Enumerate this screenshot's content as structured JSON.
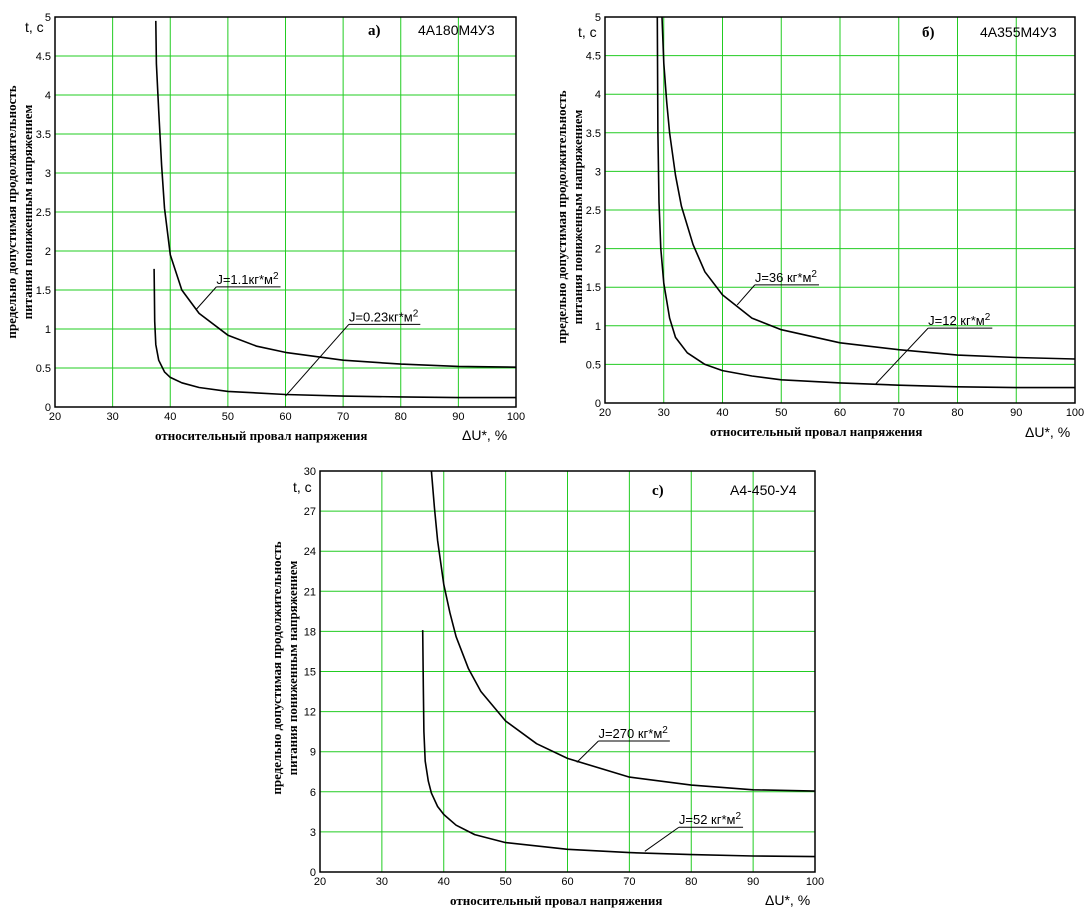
{
  "chart_data": [
    {
      "type": "line",
      "panel_letter": "а)",
      "model": "4A180M4У3",
      "ylabel_line1": "предельно допустимая продолжительность",
      "ylabel_line2": "питания пониженным напряжением",
      "xlabel": "относительный провал напряжения",
      "x_unit": "ΔU*, %",
      "y_unit": "t, c",
      "xlim": [
        20,
        100
      ],
      "ylim": [
        0,
        5
      ],
      "x_ticks": [
        "20",
        "30",
        "40",
        "50",
        "60",
        "70",
        "80",
        "90",
        "100"
      ],
      "y_ticks": [
        "0",
        "0.5",
        "1",
        "1.5",
        "2",
        "2.5",
        "3",
        "3.5",
        "4",
        "4.5",
        "5"
      ],
      "y_tick_values": [
        0,
        0.5,
        1,
        1.5,
        2,
        2.5,
        3,
        3.5,
        4,
        4.5,
        5
      ],
      "grid": true,
      "series": [
        {
          "name": "J=1.1",
          "x": [
            37.5,
            37.6,
            38,
            38.5,
            39,
            40,
            42,
            45,
            50,
            55,
            60,
            70,
            80,
            90,
            100
          ],
          "y": [
            4.95,
            4.4,
            3.8,
            3.1,
            2.55,
            1.95,
            1.5,
            1.2,
            0.92,
            0.78,
            0.7,
            0.6,
            0.55,
            0.52,
            0.51
          ]
        },
        {
          "name": "J=0.23",
          "x": [
            37.2,
            37.25,
            37.3,
            37.5,
            38,
            39,
            40,
            42,
            45,
            50,
            60,
            70,
            80,
            90,
            100
          ],
          "y": [
            1.77,
            1.45,
            1.1,
            0.8,
            0.6,
            0.45,
            0.38,
            0.31,
            0.25,
            0.2,
            0.16,
            0.14,
            0.13,
            0.12,
            0.12
          ]
        }
      ],
      "annotations": [
        {
          "series": "J=1.1",
          "prefix": "J=1.1",
          "unit": "кг*м",
          "power": "2",
          "at": [
            44.5,
            1.25
          ],
          "text_at": [
            48,
            1.54
          ]
        },
        {
          "series": "J=0.23",
          "prefix": "J=0.23",
          "unit": "кг*м",
          "power": "2",
          "at": [
            60,
            0.14
          ],
          "text_at": [
            71,
            1.06
          ]
        }
      ]
    },
    {
      "type": "line",
      "panel_letter": "б)",
      "model": "4A355M4У3",
      "ylabel_line1": "предельно допустимая продолжительность",
      "ylabel_line2": "питания пониженным напряжением",
      "xlabel": "относительный провал напряжения",
      "x_unit": "ΔU*, %",
      "y_unit": "t, c",
      "xlim": [
        20,
        100
      ],
      "ylim": [
        0,
        5
      ],
      "x_ticks": [
        "20",
        "30",
        "40",
        "50",
        "60",
        "70",
        "80",
        "90",
        "100"
      ],
      "y_ticks": [
        "0",
        "0.5",
        "1",
        "1.5",
        "2",
        "2.5",
        "3",
        "3.5",
        "4",
        "4.5",
        "5"
      ],
      "y_tick_values": [
        0,
        0.5,
        1,
        1.5,
        2,
        2.5,
        3,
        3.5,
        4,
        4.5,
        5
      ],
      "grid": true,
      "series": [
        {
          "name": "J=36",
          "x": [
            29.7,
            30,
            30.5,
            31,
            32,
            33,
            35,
            37,
            40,
            45,
            50,
            60,
            70,
            80,
            90,
            100
          ],
          "y": [
            5,
            4.4,
            3.9,
            3.5,
            2.95,
            2.55,
            2.05,
            1.7,
            1.4,
            1.1,
            0.95,
            0.78,
            0.69,
            0.62,
            0.59,
            0.57
          ]
        },
        {
          "name": "J=12",
          "x": [
            28.9,
            29,
            29.2,
            29.5,
            30,
            31,
            32,
            34,
            37,
            40,
            45,
            50,
            60,
            70,
            80,
            90,
            100
          ],
          "y": [
            5,
            3.5,
            2.6,
            2,
            1.55,
            1.1,
            0.85,
            0.65,
            0.5,
            0.42,
            0.35,
            0.3,
            0.26,
            0.23,
            0.21,
            0.2,
            0.2
          ]
        }
      ],
      "annotations": [
        {
          "series": "J=36",
          "prefix": "J=36 ",
          "unit": "кг*м",
          "power": "2",
          "at": [
            42.5,
            1.27
          ],
          "text_at": [
            45.5,
            1.53
          ]
        },
        {
          "series": "J=12",
          "prefix": "J=12 ",
          "unit": "кг*м",
          "power": "2",
          "at": [
            66,
            0.24
          ],
          "text_at": [
            75,
            0.97
          ]
        }
      ]
    },
    {
      "type": "line",
      "panel_letter": "c)",
      "model": "А4-450-У4",
      "ylabel_line1": "предельно допустимая продолжительность",
      "ylabel_line2": "питания пониженным напряжением",
      "xlabel": "относительный провал напряжения",
      "x_unit": "ΔU*, %",
      "y_unit": "t, c",
      "xlim": [
        20,
        100
      ],
      "ylim": [
        0,
        30
      ],
      "x_ticks": [
        "20",
        "30",
        "40",
        "50",
        "60",
        "70",
        "80",
        "90",
        "100"
      ],
      "y_ticks": [
        "0",
        "3",
        "6",
        "9",
        "12",
        "15",
        "18",
        "21",
        "24",
        "27",
        "30"
      ],
      "y_tick_values": [
        0,
        3,
        6,
        9,
        12,
        15,
        18,
        21,
        24,
        27,
        30
      ],
      "grid": true,
      "series": [
        {
          "name": "J=270",
          "x": [
            38,
            38.5,
            39,
            40,
            41,
            42,
            44,
            46,
            50,
            55,
            60,
            70,
            80,
            90,
            100
          ],
          "y": [
            30,
            27.2,
            24.8,
            21.5,
            19.4,
            17.6,
            15.2,
            13.5,
            11.3,
            9.6,
            8.5,
            7.1,
            6.5,
            6.15,
            6.05
          ]
        },
        {
          "name": "J=52",
          "x": [
            36.6,
            36.7,
            36.8,
            37,
            37.5,
            38,
            39,
            40,
            42,
            45,
            50,
            60,
            70,
            80,
            90,
            100
          ],
          "y": [
            18.1,
            14,
            10.5,
            8.3,
            6.8,
            5.9,
            4.9,
            4.3,
            3.5,
            2.8,
            2.2,
            1.7,
            1.45,
            1.3,
            1.2,
            1.15
          ]
        }
      ],
      "annotations": [
        {
          "series": "J=270",
          "prefix": "J=270 ",
          "unit": "кг*м",
          "power": "2",
          "at": [
            61.5,
            8.2
          ],
          "text_at": [
            65,
            9.8
          ]
        },
        {
          "series": "J=52",
          "prefix": "J=52 ",
          "unit": "кг*м",
          "power": "2",
          "at": [
            72.5,
            1.55
          ],
          "text_at": [
            78,
            3.35
          ]
        }
      ]
    }
  ]
}
